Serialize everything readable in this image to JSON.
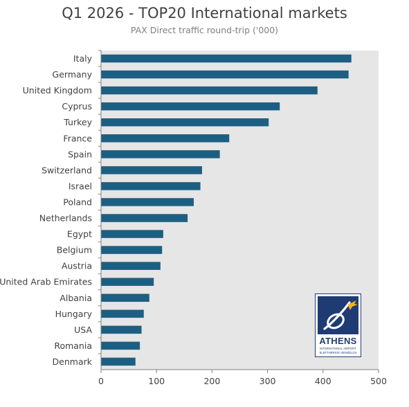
{
  "chart_data": {
    "type": "bar",
    "orientation": "horizontal",
    "title": "Q1 2026 - TOP20 International markets",
    "subtitle": "PAX Direct traffic round-trip ('000)",
    "categories": [
      "Italy",
      "Germany",
      "United Kingdom",
      "Cyprus",
      "Turkey",
      "France",
      "Spain",
      "Switzerland",
      "Israel",
      "Poland",
      "Netherlands",
      "Egypt",
      "Belgium",
      "Austria",
      "United Arab Emirates",
      "Albania",
      "Hungary",
      "USA",
      "Romania",
      "Denmark"
    ],
    "values": [
      451,
      446,
      390,
      322,
      302,
      231,
      214,
      182,
      179,
      167,
      156,
      112,
      110,
      107,
      95,
      87,
      77,
      73,
      70,
      62
    ],
    "xlim": [
      0,
      500
    ],
    "xticks": [
      0,
      100,
      200,
      300,
      400,
      500
    ],
    "xtick_labels": [
      "0",
      "100",
      "200",
      "300",
      "400",
      "500"
    ],
    "grid": false,
    "bar_color": "#1d5f82",
    "plot_background": "#e6e6e6"
  },
  "logo": {
    "name": "ATHENS",
    "line1": "INTERNATIONAL AIRPORT",
    "line2": "ELEFTHERIOS VENIZELOS",
    "color": "#1f3b73",
    "accent": "#f2b31a"
  }
}
